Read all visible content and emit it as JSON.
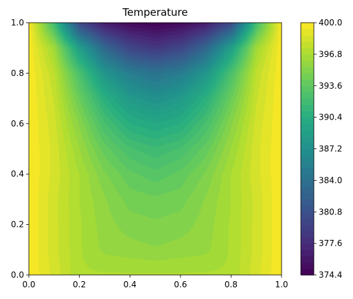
{
  "chart_data": {
    "type": "heatmap",
    "subtype": "filled-contour",
    "title": "Temperature",
    "xlabel": "",
    "ylabel": "",
    "xlim": [
      0.0,
      1.0
    ],
    "ylim": [
      0.0,
      1.0
    ],
    "x_ticks": [
      "0.0",
      "0.2",
      "0.4",
      "0.6",
      "0.8",
      "1.0"
    ],
    "y_ticks": [
      "0.0",
      "0.2",
      "0.4",
      "0.6",
      "0.8",
      "1.0"
    ],
    "colormap": "viridis",
    "colorbar": {
      "range": [
        374.4,
        400.0
      ],
      "ticks": [
        "374.4",
        "377.6",
        "380.8",
        "384.0",
        "387.2",
        "390.4",
        "393.6",
        "396.8",
        "400.0"
      ]
    },
    "field_samples": {
      "x": [
        0.0,
        0.1,
        0.2,
        0.3,
        0.4,
        0.5,
        0.6,
        0.7,
        0.8,
        0.9,
        1.0
      ],
      "y": [
        0.0,
        0.1,
        0.2,
        0.3,
        0.4,
        0.5,
        0.6,
        0.7,
        0.8,
        0.9,
        1.0
      ],
      "values": [
        [
          400.0,
          398.5,
          396.9,
          396.9,
          396.9,
          396.9,
          396.9,
          396.9,
          396.9,
          398.5,
          400.0
        ],
        [
          400.0,
          398.3,
          396.9,
          396.0,
          395.8,
          395.6,
          395.8,
          396.0,
          396.9,
          398.3,
          400.0
        ],
        [
          400.0,
          398.3,
          396.9,
          395.8,
          395.2,
          395.0,
          395.2,
          395.8,
          396.9,
          398.3,
          400.0
        ],
        [
          400.0,
          398.3,
          396.8,
          395.6,
          394.6,
          394.4,
          394.6,
          395.6,
          396.8,
          398.3,
          400.0
        ],
        [
          400.0,
          398.5,
          396.8,
          395.0,
          393.8,
          393.2,
          393.8,
          395.0,
          396.8,
          398.5,
          400.0
        ],
        [
          400.0,
          398.5,
          396.2,
          393.9,
          392.4,
          391.8,
          392.4,
          393.9,
          396.2,
          398.5,
          400.0
        ],
        [
          400.0,
          398.3,
          395.4,
          392.4,
          390.4,
          389.8,
          390.4,
          392.4,
          395.4,
          398.3,
          400.0
        ],
        [
          400.0,
          398.0,
          394.2,
          390.6,
          388.2,
          387.2,
          388.2,
          390.6,
          394.2,
          398.0,
          400.0
        ],
        [
          400.0,
          397.6,
          392.6,
          387.8,
          385.2,
          384.2,
          385.2,
          387.8,
          392.6,
          397.6,
          400.0
        ],
        [
          400.0,
          396.4,
          388.8,
          383.0,
          379.8,
          378.6,
          379.8,
          383.0,
          388.8,
          396.4,
          400.0
        ],
        [
          400.0,
          392.0,
          380.0,
          376.2,
          374.9,
          374.4,
          374.9,
          376.2,
          380.0,
          392.0,
          400.0
        ]
      ]
    }
  }
}
